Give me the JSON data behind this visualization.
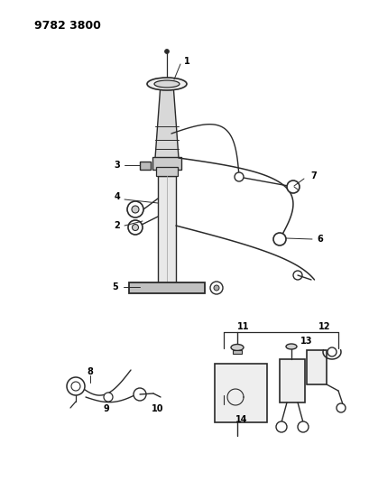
{
  "title": "9782 3800",
  "bg_color": "#ffffff",
  "line_color": "#2a2a2a",
  "fig_width": 4.1,
  "fig_height": 5.33,
  "dpi": 100
}
